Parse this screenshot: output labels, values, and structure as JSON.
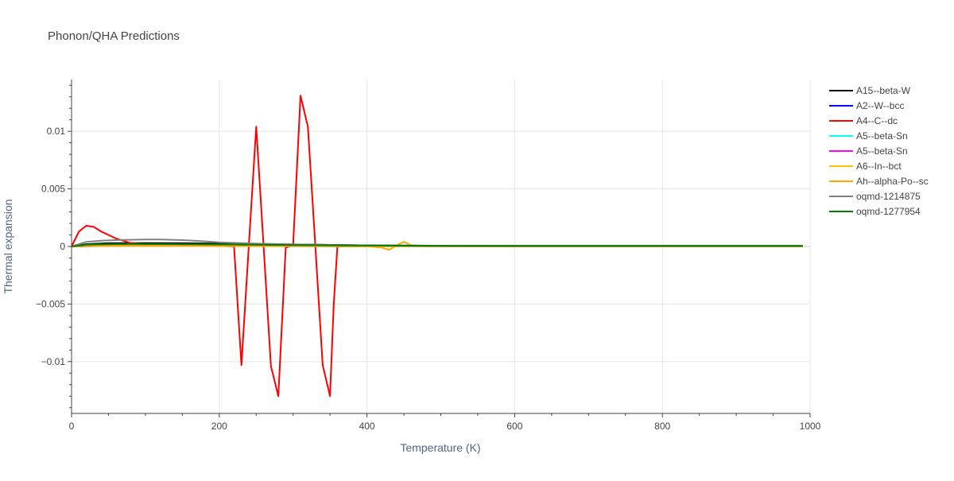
{
  "chart_data": {
    "type": "line",
    "title": "Phonon/QHA Predictions",
    "xlabel": "Temperature (K)",
    "ylabel": "Thermal expansion",
    "xlim": [
      0,
      1000
    ],
    "ylim": [
      -0.0145,
      0.0145
    ],
    "xticks": [
      0,
      200,
      400,
      600,
      800,
      1000
    ],
    "xtick_labels": [
      "0",
      "200",
      "400",
      "600",
      "800",
      "1000"
    ],
    "yticks": [
      -0.01,
      -0.005,
      0,
      0.005,
      0.01
    ],
    "ytick_labels": [
      "−0.01",
      "−0.005",
      "0",
      "0.005",
      "0.01"
    ],
    "grid": true,
    "legend_position": "right",
    "series": [
      {
        "name": "A15--beta-W",
        "color": "#000000",
        "x": [
          0,
          20,
          50,
          100,
          150,
          200,
          300,
          400,
          500,
          600,
          700,
          800,
          900,
          990
        ],
        "y": [
          0,
          0.0002,
          0.00028,
          0.0003,
          0.00028,
          0.00025,
          0.00018,
          0.0001,
          6e-05,
          5e-05,
          5e-05,
          5e-05,
          5e-05,
          5e-05
        ]
      },
      {
        "name": "A2--W--bcc",
        "color": "#0000ff",
        "x": [
          0,
          20,
          50,
          100,
          200,
          300,
          400,
          600,
          800,
          990
        ],
        "y": [
          0,
          3e-05,
          6e-05,
          8e-05,
          7e-05,
          5e-05,
          4e-05,
          3e-05,
          3e-05,
          3e-05
        ]
      },
      {
        "name": "A4--C--dc",
        "color": "#ff0000",
        "x": [
          0,
          10,
          20,
          30,
          40,
          50,
          60,
          70,
          80,
          100,
          120,
          150,
          200,
          220,
          230,
          240,
          250,
          260,
          270,
          280,
          290,
          300,
          310,
          320,
          330,
          340,
          350,
          355,
          360,
          365,
          400,
          500,
          600,
          700,
          800,
          900,
          990
        ],
        "y": [
          0,
          0.0013,
          0.0018,
          0.0017,
          0.0013,
          0.001,
          0.0007,
          0.0005,
          0.0003,
          0.0002,
          0.00012,
          8e-05,
          5e-05,
          0.0,
          -0.0103,
          0.0001,
          0.0104,
          0.0001,
          -0.0104,
          -0.013,
          -0.0001,
          0.0001,
          0.0131,
          0.0104,
          0.0001,
          -0.0103,
          -0.013,
          -0.005,
          0.0,
          0.0,
          2e-05,
          2e-05,
          2e-05,
          2e-05,
          2e-05,
          2e-05,
          2e-05
        ]
      },
      {
        "name": "A5--beta-Sn",
        "color": "#00ffff",
        "x": [
          0,
          20,
          50,
          100,
          200,
          400,
          600,
          800,
          990
        ],
        "y": [
          0,
          3e-05,
          5e-05,
          6e-05,
          5e-05,
          3e-05,
          2e-05,
          2e-05,
          2e-05
        ]
      },
      {
        "name": "A5--beta-Sn",
        "color": "#ff00ff",
        "x": [
          0,
          20,
          50,
          100,
          200,
          400,
          600,
          800,
          990
        ],
        "y": [
          0,
          2e-05,
          4e-05,
          5e-05,
          4e-05,
          3e-05,
          2e-05,
          2e-05,
          2e-05
        ]
      },
      {
        "name": "A6--In--bct",
        "color": "#ffc000",
        "x": [
          0,
          20,
          50,
          100,
          200,
          400,
          600,
          800,
          990
        ],
        "y": [
          0,
          3e-05,
          4e-05,
          4e-05,
          3e-05,
          2e-05,
          2e-05,
          2e-05,
          2e-05
        ]
      },
      {
        "name": "Ah--alpha-Po--sc",
        "color": "#ffa500",
        "x": [
          0,
          20,
          50,
          100,
          200,
          300,
          400,
          420,
          430,
          440,
          450,
          460,
          500,
          600,
          800,
          990
        ],
        "y": [
          0,
          5e-05,
          6e-05,
          6e-05,
          4e-05,
          3e-05,
          2e-05,
          -0.0001,
          -0.0003,
          0.0001,
          0.0004,
          0.0001,
          2e-05,
          2e-05,
          2e-05,
          2e-05
        ]
      },
      {
        "name": "oqmd-1214875",
        "color": "#808080",
        "x": [
          0,
          10,
          20,
          40,
          60,
          80,
          100,
          120,
          150,
          180,
          200,
          250,
          300,
          400,
          500,
          600,
          700,
          800,
          900,
          990
        ],
        "y": [
          0,
          0.0002,
          0.0004,
          0.0005,
          0.00055,
          0.00058,
          0.0006,
          0.0006,
          0.00055,
          0.00045,
          0.00035,
          0.00025,
          0.00018,
          0.0001,
          7e-05,
          6e-05,
          6e-05,
          6e-05,
          6e-05,
          6e-05
        ]
      },
      {
        "name": "oqmd-1277954",
        "color": "#008000",
        "x": [
          0,
          20,
          50,
          100,
          150,
          200,
          300,
          400,
          500,
          600,
          700,
          800,
          900,
          990
        ],
        "y": [
          0,
          0.00015,
          0.0002,
          0.00022,
          0.0002,
          0.00018,
          0.00012,
          8e-05,
          5e-05,
          4e-05,
          4e-05,
          4e-05,
          4e-05,
          4e-05
        ]
      }
    ]
  }
}
